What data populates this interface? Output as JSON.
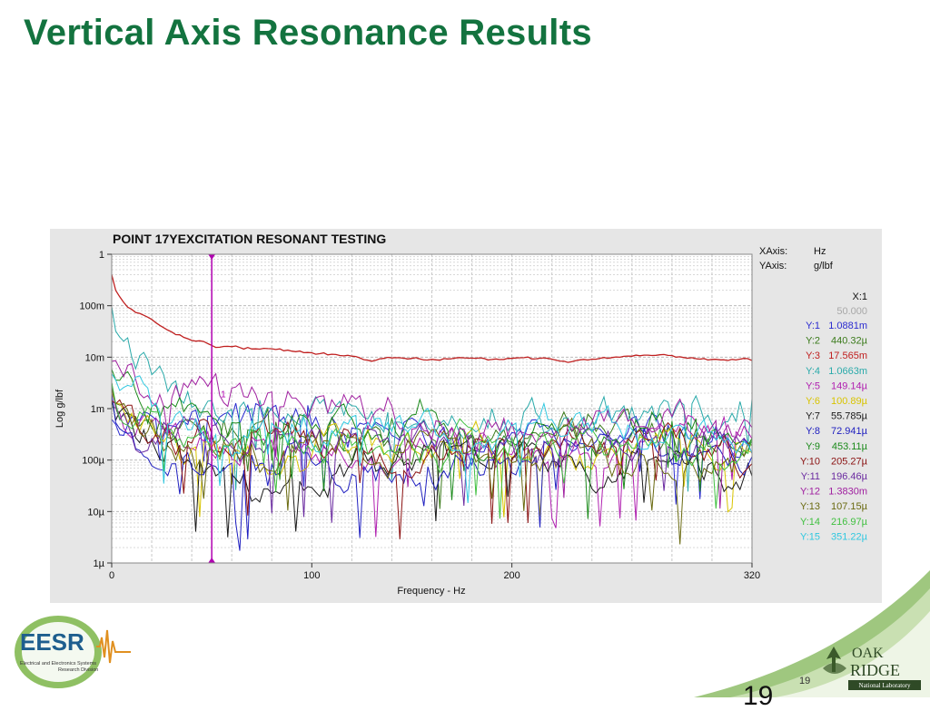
{
  "slide": {
    "title": "Vertical Axis Resonance Results",
    "page_number": "19",
    "big_page_number": "19"
  },
  "logos": {
    "left": "EESR",
    "left_sub1": "Electrical and Electronics Systems",
    "left_sub2": "Research Division",
    "right_line1": "OAK",
    "right_line2": "RIDGE",
    "right_line3": "National Laboratory"
  },
  "colors": {
    "title": "#13733f",
    "panel_bg": "#e6e6e6",
    "plot_bg": "#ffffff",
    "cursor": "#b000b0"
  },
  "chart_data": {
    "type": "line",
    "title": "POINT 17YEXCITATION  RESONANT TESTING",
    "xlabel": "Frequency - Hz",
    "ylabel": "Log g/lbf",
    "xlim": [
      0,
      320
    ],
    "ylim": [
      1e-06,
      1
    ],
    "yscale": "log",
    "x_ticks": [
      "0",
      "100",
      "200",
      "320"
    ],
    "y_ticks": [
      "1",
      "100m",
      "10m",
      "1m",
      "100µ",
      "10µ",
      "1µ"
    ],
    "grid": true,
    "info": {
      "xaxis_label": "XAxis:",
      "xaxis_unit": "Hz",
      "yaxis_label": "YAxis:",
      "yaxis_unit": "g/lbf"
    },
    "cursor": {
      "label": "X:1",
      "x": 50,
      "x_text": "50.000",
      "marker_label": "1"
    },
    "series": [
      {
        "name": "Y:1",
        "color": "#2b2bd0",
        "readout": "1.0881m"
      },
      {
        "name": "Y:2",
        "color": "#3a7a1a",
        "readout": "440.32µ"
      },
      {
        "name": "Y:3",
        "color": "#c02020",
        "readout": "17.565m"
      },
      {
        "name": "Y:4",
        "color": "#2aaaaa",
        "readout": "1.0663m"
      },
      {
        "name": "Y:5",
        "color": "#b020b0",
        "readout": "149.14µ"
      },
      {
        "name": "Y:6",
        "color": "#d8c400",
        "readout": "100.89µ"
      },
      {
        "name": "Y:7",
        "color": "#1a1a1a",
        "readout": "55.785µ"
      },
      {
        "name": "Y:8",
        "color": "#2020c0",
        "readout": "72.941µ"
      },
      {
        "name": "Y:9",
        "color": "#1a8a1a",
        "readout": "453.11µ"
      },
      {
        "name": "Y:10",
        "color": "#8a1010",
        "readout": "205.27µ"
      },
      {
        "name": "Y:11",
        "color": "#6a2aa0",
        "readout": "196.46µ"
      },
      {
        "name": "Y:12",
        "color": "#a020a0",
        "readout": "1.3830m"
      },
      {
        "name": "Y:13",
        "color": "#6a6a10",
        "readout": "107.15µ"
      },
      {
        "name": "Y:14",
        "color": "#40c040",
        "readout": "216.97µ"
      },
      {
        "name": "Y:15",
        "color": "#30c8e0",
        "readout": "351.22µ"
      }
    ]
  }
}
